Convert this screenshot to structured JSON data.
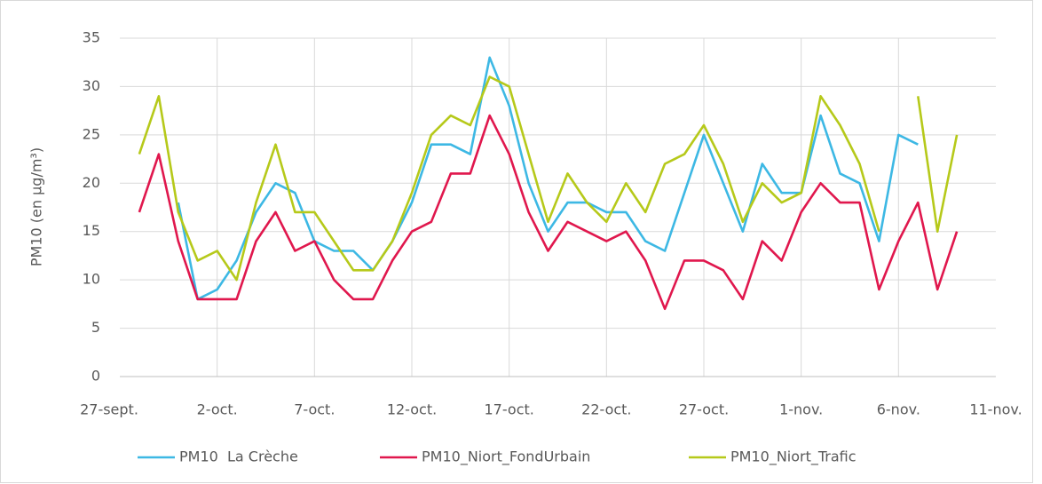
{
  "chart_data": {
    "type": "line",
    "y_label": "PM10 (en µg/m³)",
    "categories": [
      "27-sept.",
      null,
      null,
      null,
      null,
      "2-oct.",
      null,
      null,
      null,
      null,
      "7-oct.",
      null,
      null,
      null,
      null,
      "12-oct.",
      null,
      null,
      null,
      null,
      "17-oct.",
      null,
      null,
      null,
      null,
      "22-oct.",
      null,
      null,
      null,
      null,
      "27-oct.",
      null,
      null,
      null,
      null,
      "1-nov.",
      null,
      null,
      null,
      null,
      "6-nov.",
      null,
      null,
      null,
      null,
      "11-nov."
    ],
    "series": [
      {
        "name": "PM10  La Crèche",
        "color": "#3db8e4",
        "values": [
          null,
          null,
          null,
          18,
          8,
          9,
          12,
          17,
          20,
          19,
          14,
          13,
          13,
          11,
          14,
          18,
          24,
          24,
          23,
          33,
          28,
          20,
          15,
          18,
          18,
          17,
          17,
          14,
          13,
          19,
          25,
          20,
          15,
          22,
          19,
          19,
          27,
          21,
          20,
          14,
          25,
          24,
          null,
          null,
          null,
          null
        ]
      },
      {
        "name": "PM10_Niort_FondUrbain",
        "color": "#e0174d",
        "values": [
          null,
          17,
          23,
          14,
          8,
          8,
          8,
          14,
          17,
          13,
          14,
          10,
          8,
          8,
          12,
          15,
          16,
          21,
          21,
          27,
          23,
          17,
          13,
          16,
          15,
          14,
          15,
          12,
          7,
          12,
          12,
          11,
          8,
          14,
          12,
          17,
          20,
          18,
          18,
          9,
          14,
          18,
          9,
          15,
          null,
          null
        ]
      },
      {
        "name": "PM10_Niort_Trafic",
        "color": "#b6c91a",
        "values": [
          null,
          23,
          29,
          17,
          12,
          13,
          10,
          18,
          24,
          17,
          17,
          14,
          11,
          11,
          14,
          19,
          25,
          27,
          26,
          31,
          30,
          23,
          16,
          21,
          18,
          16,
          20,
          17,
          22,
          23,
          26,
          22,
          16,
          20,
          18,
          19,
          29,
          26,
          22,
          15,
          null,
          29,
          15,
          25,
          null,
          null
        ]
      }
    ],
    "ylim": [
      0,
      35
    ],
    "yticks": [
      0,
      5,
      10,
      15,
      20,
      25,
      30,
      35
    ],
    "grid": true
  }
}
